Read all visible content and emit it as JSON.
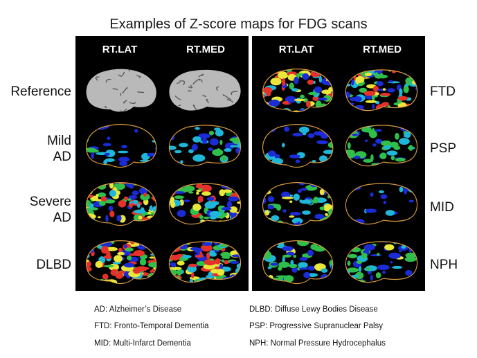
{
  "title": "Examples of Z-score maps for FDG scans",
  "column_headers": [
    "RT.LAT",
    "RT.MED",
    "RT.LAT",
    "RT.MED"
  ],
  "left_rows": [
    {
      "label": "Reference",
      "label_lines": [
        "Reference"
      ]
    },
    {
      "label": "Mild AD",
      "label_lines": [
        "Mild",
        "AD"
      ]
    },
    {
      "label": "Severe AD",
      "label_lines": [
        "Severe",
        "AD"
      ]
    },
    {
      "label": "DLBD",
      "label_lines": [
        "DLBD"
      ]
    }
  ],
  "right_rows": [
    {
      "label": "FTD"
    },
    {
      "label": "PSP"
    },
    {
      "label": "MID"
    },
    {
      "label": "NPH"
    }
  ],
  "legend": {
    "ad": "AD:   Alzheimer’s Disease",
    "ftd": "FTD:  Fronto-Temporal Dementia",
    "mid": "MID:       Multi-Infarct Dementia",
    "dlbd": "DLBD:   Diffuse Lewy Bodies Disease",
    "psp": "PSP: Progressive Supranuclear Palsy",
    "nph": "NPH: Normal Pressure Hydrocephalus"
  },
  "colors": {
    "background": "#000000",
    "outline": "#d89a3c",
    "low": "#1b2bd6",
    "mid_low": "#1fb7d9",
    "mid": "#2fbf4a",
    "mid_high": "#e9e83a",
    "high": "#e6312b"
  },
  "scan_intensity": {
    "reference": [
      0,
      0
    ],
    "mild_ad": [
      0.15,
      0.2
    ],
    "severe_ad": [
      0.75,
      0.7
    ],
    "dlbd": [
      0.85,
      0.8
    ],
    "ftd": [
      0.7,
      0.65
    ],
    "psp": [
      0.12,
      0.35
    ],
    "mid": [
      0.45,
      0.1
    ],
    "nph": [
      0.4,
      0.35
    ]
  }
}
